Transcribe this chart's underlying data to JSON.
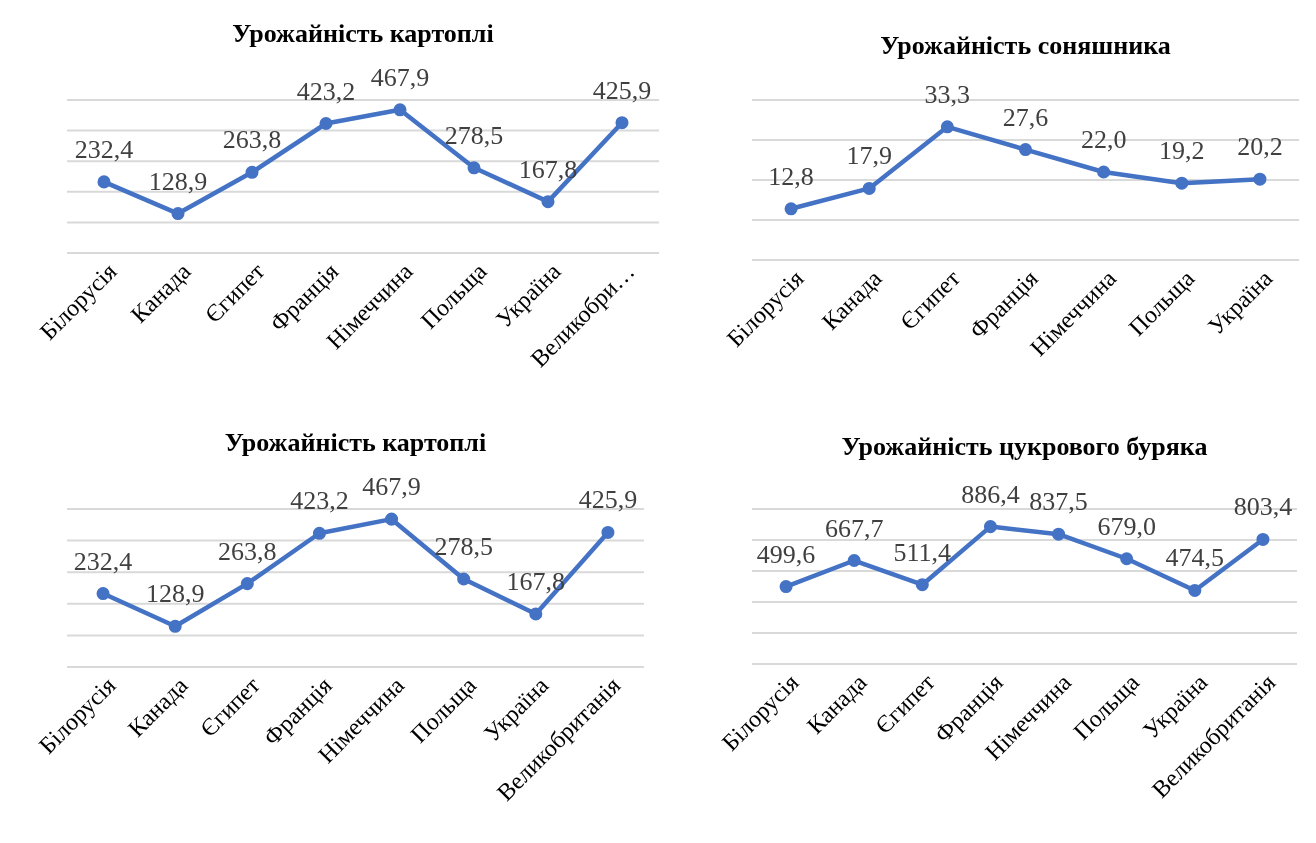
{
  "chart_data": [
    {
      "type": "line",
      "title": "Урожайність картоплі",
      "categories": [
        "Білорусія",
        "Канада",
        "Єгипет",
        "Франція",
        "Німеччина",
        "Польща",
        "Україна",
        "Великобри…"
      ],
      "series": [
        {
          "color": "#4472c4",
          "values": [
            232.4,
            128.9,
            263.8,
            423.2,
            467.9,
            278.5,
            167.8,
            425.9
          ],
          "value_labels": [
            "232,4",
            "128,9",
            "263,8",
            "423,2",
            "467,9",
            "278,5",
            "167,8",
            "425,9"
          ]
        }
      ],
      "ylim": [
        0,
        500
      ],
      "yticks": [
        {
          "value": 0,
          "label": null
        },
        {
          "value": 100,
          "label": null
        },
        {
          "value": 200,
          "label": null
        },
        {
          "value": 300,
          "label": null
        },
        {
          "value": 400,
          "label": null
        },
        {
          "value": 500,
          "label": null
        }
      ],
      "grid": "y",
      "tick_labels": "x",
      "marker": "circle",
      "line_style": "solid"
    },
    {
      "type": "line",
      "title": "Урожайність соняшника",
      "categories": [
        "Білорусія",
        "Канада",
        "Єгипет",
        "Франція",
        "Німеччина",
        "Польща",
        "Україна"
      ],
      "series": [
        {
          "color": "#4472c4",
          "values": [
            12.8,
            17.9,
            33.3,
            27.6,
            22.0,
            19.2,
            20.2
          ],
          "value_labels": [
            "12,8",
            "17,9",
            "33,3",
            "27,6",
            "22,0",
            "19,2",
            "20,2"
          ]
        }
      ],
      "ylim": [
        0,
        40
      ],
      "yticks": [
        {
          "value": 0,
          "label": null
        },
        {
          "value": 10,
          "label": null
        },
        {
          "value": 20,
          "label": null
        },
        {
          "value": 30,
          "label": null
        },
        {
          "value": 40,
          "label": null
        }
      ],
      "grid": "y",
      "tick_labels": "x",
      "marker": "circle",
      "line_style": "solid"
    },
    {
      "type": "line",
      "title": "Урожайність картоплі",
      "categories": [
        "Білорусія",
        "Канада",
        "Єгипет",
        "Франція",
        "Німеччина",
        "Польща",
        "Україна",
        "Великобританія"
      ],
      "series": [
        {
          "color": "#4472c4",
          "values": [
            232.4,
            128.9,
            263.8,
            423.2,
            467.9,
            278.5,
            167.8,
            425.9
          ],
          "value_labels": [
            "232,4",
            "128,9",
            "263,8",
            "423,2",
            "467,9",
            "278,5",
            "167,8",
            "425,9"
          ]
        }
      ],
      "ylim": [
        0,
        500
      ],
      "yticks": [
        {
          "value": 0,
          "label": null
        },
        {
          "value": 100,
          "label": null
        },
        {
          "value": 200,
          "label": null
        },
        {
          "value": 300,
          "label": null
        },
        {
          "value": 400,
          "label": null
        },
        {
          "value": 500,
          "label": null
        }
      ],
      "grid": "y",
      "tick_labels": "x",
      "marker": "circle",
      "line_style": "solid"
    },
    {
      "type": "line",
      "title": "Урожайність цукрового буряка",
      "categories": [
        "Білорусія",
        "Канада",
        "Єгипет",
        "Франція",
        "Німеччина",
        "Польща",
        "Україна",
        "Великобританія"
      ],
      "series": [
        {
          "color": "#4472c4",
          "values": [
            499.6,
            667.7,
            511.4,
            886.4,
            837.5,
            679.0,
            474.5,
            803.4
          ],
          "value_labels": [
            "499,6",
            "667,7",
            "511,4",
            "886,4",
            "837,5",
            "679,0",
            "474,5",
            "803,4"
          ]
        }
      ],
      "ylim": [
        0,
        1000
      ],
      "yticks": [
        {
          "value": 0,
          "label": null
        },
        {
          "value": 200,
          "label": null
        },
        {
          "value": 400,
          "label": null
        },
        {
          "value": 600,
          "label": null
        },
        {
          "value": 800,
          "label": null
        },
        {
          "value": 1000,
          "label": null
        }
      ],
      "grid": "y",
      "tick_labels": "x",
      "marker": "circle",
      "line_style": "solid"
    }
  ]
}
